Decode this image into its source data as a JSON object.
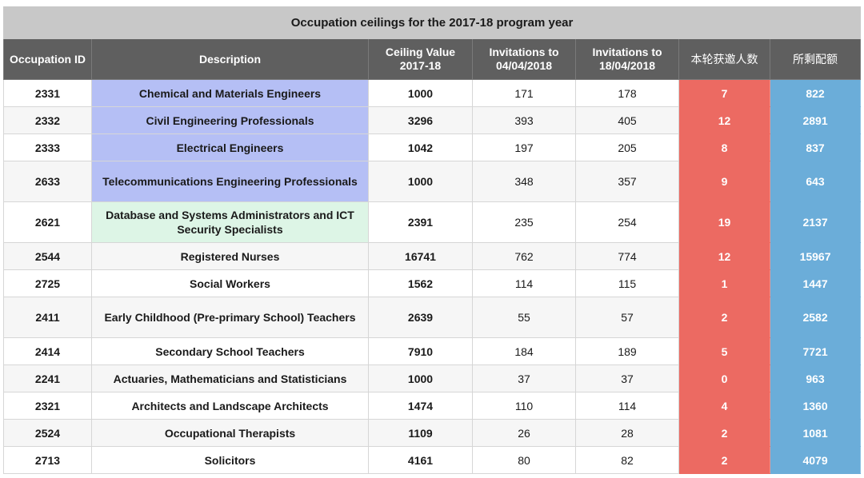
{
  "title": "Occupation ceilings for the 2017-18 program year",
  "headers": [
    "Occupation ID",
    "Description",
    "Ceiling Value 2017-18",
    "Invitations to 04/04/2018",
    "Invitations to 18/04/2018",
    "本轮获邀人数",
    "所剩配额"
  ],
  "colors": {
    "engineering_highlight": "#b5bff5",
    "it_highlight": "#ddf5e6",
    "invited_this_round": "#ec6a62",
    "remaining_quota": "#6badd9",
    "header_bg": "#5f5f5f",
    "title_bg": "#c8c8c8"
  },
  "rows": [
    {
      "id": "2331",
      "desc": "Chemical and Materials Engineers",
      "ceiling": "1000",
      "inv1": "171",
      "inv2": "178",
      "this_round": "7",
      "remaining": "822"
    },
    {
      "id": "2332",
      "desc": "Civil Engineering Professionals",
      "ceiling": "3296",
      "inv1": "393",
      "inv2": "405",
      "this_round": "12",
      "remaining": "2891"
    },
    {
      "id": "2333",
      "desc": "Electrical Engineers",
      "ceiling": "1042",
      "inv1": "197",
      "inv2": "205",
      "this_round": "8",
      "remaining": "837"
    },
    {
      "id": "2633",
      "desc": "Telecommunications Engineering Professionals",
      "ceiling": "1000",
      "inv1": "348",
      "inv2": "357",
      "this_round": "9",
      "remaining": "643"
    },
    {
      "id": "2621",
      "desc": "Database and Systems Administrators and ICT Security Specialists",
      "ceiling": "2391",
      "inv1": "235",
      "inv2": "254",
      "this_round": "19",
      "remaining": "2137"
    },
    {
      "id": "2544",
      "desc": "Registered Nurses",
      "ceiling": "16741",
      "inv1": "762",
      "inv2": "774",
      "this_round": "12",
      "remaining": "15967"
    },
    {
      "id": "2725",
      "desc": "Social Workers",
      "ceiling": "1562",
      "inv1": "114",
      "inv2": "115",
      "this_round": "1",
      "remaining": "1447"
    },
    {
      "id": "2411",
      "desc": "Early Childhood (Pre-primary School) Teachers",
      "ceiling": "2639",
      "inv1": "55",
      "inv2": "57",
      "this_round": "2",
      "remaining": "2582"
    },
    {
      "id": "2414",
      "desc": "Secondary School Teachers",
      "ceiling": "7910",
      "inv1": "184",
      "inv2": "189",
      "this_round": "5",
      "remaining": "7721"
    },
    {
      "id": "2241",
      "desc": "Actuaries, Mathematicians and Statisticians",
      "ceiling": "1000",
      "inv1": "37",
      "inv2": "37",
      "this_round": "0",
      "remaining": "963"
    },
    {
      "id": "2321",
      "desc": "Architects and Landscape Architects",
      "ceiling": "1474",
      "inv1": "110",
      "inv2": "114",
      "this_round": "4",
      "remaining": "1360"
    },
    {
      "id": "2524",
      "desc": "Occupational Therapists",
      "ceiling": "1109",
      "inv1": "26",
      "inv2": "28",
      "this_round": "2",
      "remaining": "1081"
    },
    {
      "id": "2713",
      "desc": "Solicitors",
      "ceiling": "4161",
      "inv1": "80",
      "inv2": "82",
      "this_round": "2",
      "remaining": "4079"
    }
  ]
}
